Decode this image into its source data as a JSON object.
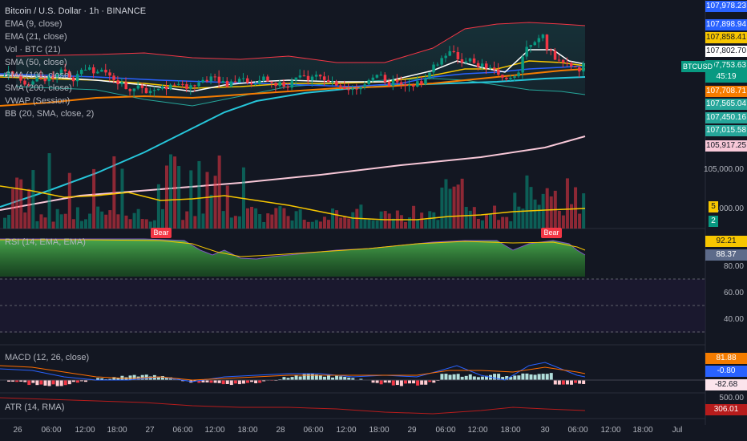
{
  "header": {
    "title": "Bitcoin / U.S. Dollar · 1h · BINANCE",
    "legend": [
      "EMA (9, close)",
      "EMA (21, close)",
      "Vol · BTC (21)",
      "SMA (50, close)",
      "SMA (100, close)",
      "SMA (200, close)",
      "VWAP (Session)",
      "BB (20, SMA, close, 2)"
    ]
  },
  "price_scale": {
    "tags": [
      {
        "text": "107,978.23",
        "color": "#2962ff"
      },
      {
        "text": "107,898.94",
        "color": "#2962ff"
      },
      {
        "text": "107,858.41",
        "color": "#f7c600"
      },
      {
        "text": "107,802.70",
        "color": "#ffffff"
      },
      {
        "text": "107,753.63",
        "color": "#089981"
      },
      {
        "text": "45:19",
        "color": "#089981"
      },
      {
        "text": "107,708.71",
        "color": "#f57c00"
      },
      {
        "text": "107,565.04",
        "color": "#26c6da"
      },
      {
        "text": "107,450.16",
        "color": "#26c6da"
      },
      {
        "text": "107,015.58",
        "color": "#26c6da"
      },
      {
        "text": "105,917.25",
        "color": "#f8c8d8"
      }
    ],
    "label_105000": "105,000.00",
    "label_104000": "4,000.00",
    "vol_ma_tag": "5",
    "vol_tag": "2",
    "ticker": "BTCUSD"
  },
  "rsi": {
    "legend": "RSI (14, EMA, EMA)",
    "value_tag": "92.21",
    "ma_tag": "88.37",
    "levels": [
      "80.00",
      "60.00",
      "40.00"
    ],
    "bear_label": "Bear"
  },
  "macd": {
    "legend": "MACD (12, 26, close)",
    "tags": [
      "81.88",
      "-0.80",
      "-82.68"
    ]
  },
  "atr": {
    "legend": "ATR (14, RMA)",
    "scale_label": "500.00",
    "value_tag": "306.01"
  },
  "time_axis": [
    "26",
    "06:00",
    "12:00",
    "18:00",
    "27",
    "06:00",
    "12:00",
    "18:00",
    "28",
    "06:00",
    "12:00",
    "18:00",
    "29",
    "06:00",
    "12:00",
    "18:00",
    "30",
    "06:00",
    "12:00",
    "18:00",
    "Jul"
  ],
  "colors": {
    "up": "#089981",
    "down": "#f23645",
    "ema9": "#ffffff",
    "ema21": "#f7c600",
    "sma50": "#f57c00",
    "sma100": "#26c6da",
    "sma200": "#f8c8d8",
    "vwap": "#2962ff",
    "bb": "#f23645"
  }
}
